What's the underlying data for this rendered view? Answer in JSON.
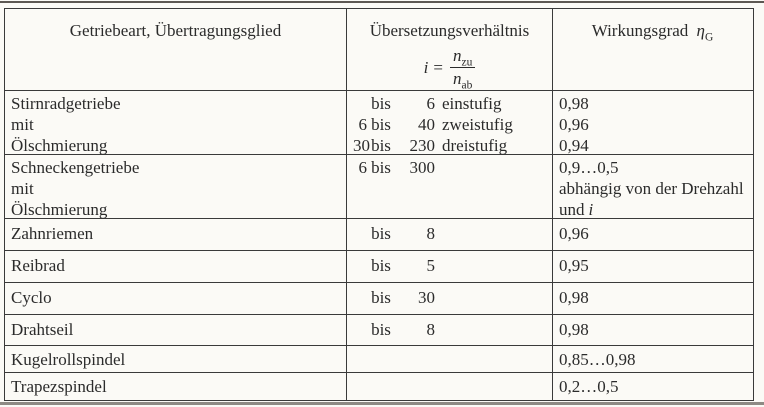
{
  "colors": {
    "paper": "#fbfaf6",
    "text": "#2b2b2b",
    "table_border": "#3a3a3a",
    "top_rule": "#5d5853",
    "bottom_rule": "#8e8a84"
  },
  "table": {
    "header": {
      "col1": "Getriebeart, Übertragungsglied",
      "col2_title": "Übersetzungsverhältnis",
      "formula": {
        "lhs": "i",
        "eq": "=",
        "num_base": "n",
        "num_sub": "zu",
        "den_base": "n",
        "den_sub": "ab"
      },
      "col3_label": "Wirkungsgrad",
      "col3_symbol": "η",
      "col3_sub": "G"
    },
    "rows": [
      {
        "name": [
          "Stirnradgetriebe",
          "mit",
          "Ölschmierung"
        ],
        "ratio": [
          {
            "f": "",
            "b": "bis",
            "t": "6",
            "s": "einstufig"
          },
          {
            "f": "6",
            "b": "bis",
            "t": "40",
            "s": "zweistufig"
          },
          {
            "f": "30",
            "b": "bis",
            "t": "230",
            "s": "dreistufig"
          }
        ],
        "eff": [
          "0,98",
          "0,96",
          "0,94"
        ]
      },
      {
        "name": [
          "Schneckengetriebe",
          "mit",
          "Ölschmierung"
        ],
        "ratio": [
          {
            "f": "6",
            "b": "bis",
            "t": "300",
            "s": ""
          }
        ],
        "eff": [
          "0,9…0,5",
          "abhängig von der Drehzahl"
        ],
        "eff_note_text": "und",
        "eff_note_italic": "i"
      },
      {
        "name": [
          "Zahnriemen"
        ],
        "ratio": [
          {
            "f": "",
            "b": "bis",
            "t": "8",
            "s": ""
          }
        ],
        "eff": [
          "0,96"
        ]
      },
      {
        "name": [
          "Reibrad"
        ],
        "ratio": [
          {
            "f": "",
            "b": "bis",
            "t": "5",
            "s": ""
          }
        ],
        "eff": [
          "0,95"
        ]
      },
      {
        "name": [
          "Cyclo"
        ],
        "ratio": [
          {
            "f": "",
            "b": "bis",
            "t": "30",
            "s": ""
          }
        ],
        "eff": [
          "0,98"
        ]
      },
      {
        "name": [
          "Drahtseil"
        ],
        "ratio": [
          {
            "f": "",
            "b": "bis",
            "t": "8",
            "s": ""
          }
        ],
        "eff": [
          "0,98"
        ]
      },
      {
        "name": [
          "Kugelrollspindel"
        ],
        "ratio": [],
        "eff": [
          "0,85…0,98"
        ]
      },
      {
        "name": [
          "Trapezspindel"
        ],
        "ratio": [],
        "eff": [
          "0,2…0,5"
        ]
      }
    ]
  }
}
